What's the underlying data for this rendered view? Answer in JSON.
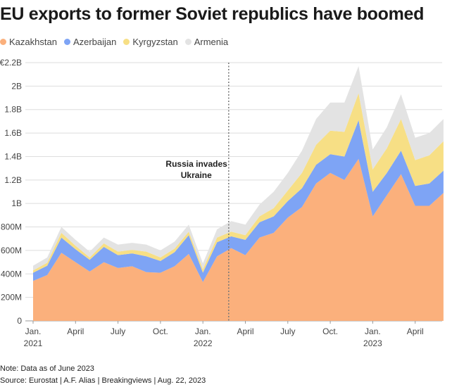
{
  "title": "EU exports to former Soviet republics have boomed",
  "legend": [
    {
      "label": "Kazakhstan",
      "color": "#fbb07c"
    },
    {
      "label": "Azerbaijan",
      "color": "#7ea4f5"
    },
    {
      "label": "Kyrgyzstan",
      "color": "#f7df85"
    },
    {
      "label": "Armenia",
      "color": "#e3e3e3"
    }
  ],
  "chart_data": {
    "type": "area",
    "stacked": true,
    "x": [
      "2021-01",
      "2021-02",
      "2021-03",
      "2021-04",
      "2021-05",
      "2021-06",
      "2021-07",
      "2021-08",
      "2021-09",
      "2021-10",
      "2021-11",
      "2021-12",
      "2022-01",
      "2022-02",
      "2022-03",
      "2022-04",
      "2022-05",
      "2022-06",
      "2022-07",
      "2022-08",
      "2022-09",
      "2022-10",
      "2022-11",
      "2022-12",
      "2023-01",
      "2023-02",
      "2023-03",
      "2023-04",
      "2023-05",
      "2023-06"
    ],
    "series": [
      {
        "name": "Kazakhstan",
        "color": "#fbb07c",
        "values": [
          340,
          390,
          580,
          500,
          420,
          500,
          450,
          465,
          415,
          410,
          465,
          570,
          330,
          550,
          620,
          560,
          710,
          750,
          880,
          970,
          1170,
          1260,
          1200,
          1380,
          890,
          1070,
          1250,
          980,
          980,
          1090
        ]
      },
      {
        "name": "Azerbaijan",
        "color": "#7ea4f5",
        "values": [
          70,
          80,
          130,
          110,
          100,
          130,
          110,
          110,
          135,
          100,
          120,
          160,
          80,
          120,
          100,
          130,
          130,
          140,
          140,
          160,
          160,
          160,
          200,
          330,
          210,
          190,
          200,
          170,
          190,
          190
        ]
      },
      {
        "name": "Kyrgyzstan",
        "color": "#f7df85",
        "values": [
          20,
          25,
          40,
          30,
          20,
          30,
          30,
          30,
          40,
          30,
          30,
          30,
          30,
          40,
          40,
          40,
          50,
          70,
          90,
          130,
          170,
          200,
          210,
          230,
          190,
          210,
          270,
          220,
          240,
          250
        ]
      },
      {
        "name": "Armenia",
        "color": "#e3e3e3",
        "values": [
          40,
          45,
          50,
          50,
          50,
          50,
          60,
          60,
          60,
          60,
          60,
          60,
          50,
          70,
          90,
          90,
          100,
          140,
          150,
          190,
          220,
          240,
          250,
          230,
          170,
          180,
          210,
          190,
          190,
          190
        ]
      }
    ],
    "y_ticks": [
      "0",
      "200M",
      "400M",
      "600M",
      "800M",
      "1B",
      "1.2B",
      "1.4B",
      "1.6B",
      "1.8B",
      "2B",
      "€2.2B"
    ],
    "ylim": [
      0,
      2200
    ],
    "y_unit": "millions of euros",
    "x_ticks": [
      {
        "month": "2021-01",
        "label": "Jan.",
        "sublabel": "2021"
      },
      {
        "month": "2021-04",
        "label": "April",
        "sublabel": ""
      },
      {
        "month": "2021-07",
        "label": "July",
        "sublabel": ""
      },
      {
        "month": "2021-10",
        "label": "Oct.",
        "sublabel": ""
      },
      {
        "month": "2022-01",
        "label": "Jan.",
        "sublabel": "2022"
      },
      {
        "month": "2022-04",
        "label": "April",
        "sublabel": ""
      },
      {
        "month": "2022-07",
        "label": "July",
        "sublabel": ""
      },
      {
        "month": "2022-10",
        "label": "Oct.",
        "sublabel": ""
      },
      {
        "month": "2023-01",
        "label": "Jan.",
        "sublabel": "2023"
      },
      {
        "month": "2023-04",
        "label": "April",
        "sublabel": ""
      }
    ],
    "annotation": {
      "line1": "Russia invades",
      "line2": "Ukraine",
      "date": "2022-02-24"
    },
    "grid": true,
    "legend_position": "top-left"
  },
  "footer": {
    "note": "Note: Data as of June 2023",
    "source": "Source: Eurostat | A.F. Alias | Breakingviews | Aug. 22, 2023"
  }
}
